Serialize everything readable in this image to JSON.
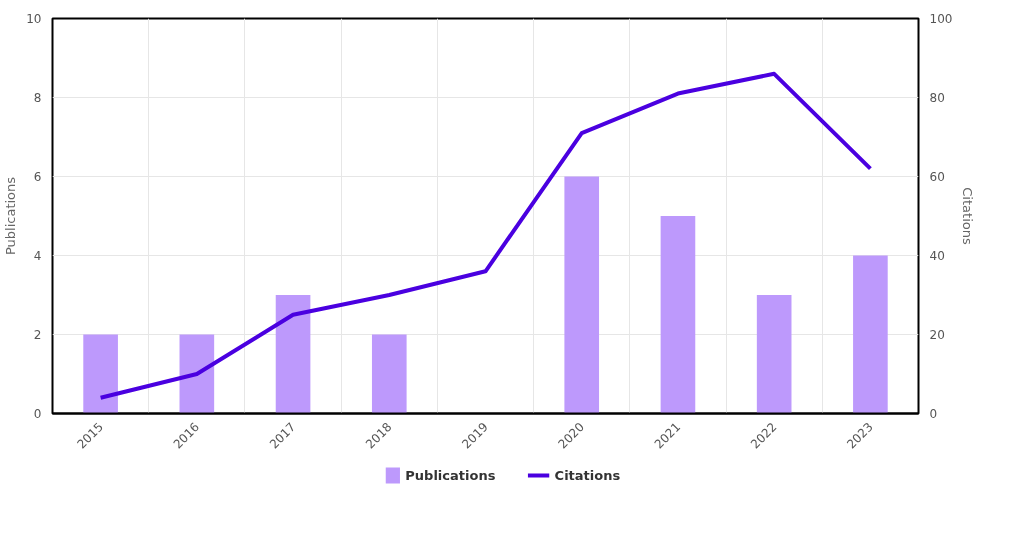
{
  "chart_data": {
    "type": "bar",
    "categories": [
      "2015",
      "2016",
      "2017",
      "2018",
      "2019",
      "2020",
      "2021",
      "2022",
      "2023"
    ],
    "series": [
      {
        "name": "Publications",
        "color": "#bd99fc",
        "values": [
          2,
          2,
          3,
          2,
          0,
          6,
          5,
          3,
          4
        ]
      },
      {
        "name": "Citations",
        "type": "line",
        "axis": "y2",
        "color": "#4a00e0",
        "values": [
          4,
          10,
          25,
          30,
          36,
          71,
          81,
          86,
          62
        ]
      }
    ],
    "ylabel": "Publications",
    "y2label": "Citations",
    "ylim": [
      0,
      10
    ],
    "yticks": [
      0,
      2,
      4,
      6,
      8,
      10
    ],
    "y2lim": [
      0,
      100
    ],
    "y2ticks": [
      0,
      20,
      40,
      60,
      80,
      100
    ],
    "grid": true,
    "legend": "bottom",
    "marker": "none",
    "line_style": "solid"
  }
}
